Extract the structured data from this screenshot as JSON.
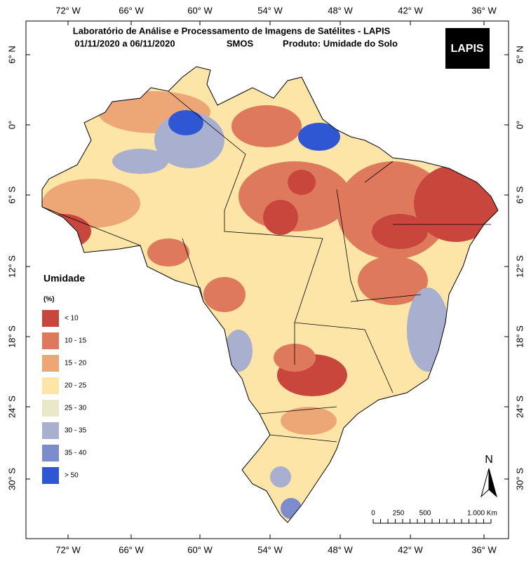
{
  "header": {
    "title": "Laboratório de Análise e Processamento de Imagens de Satélites - LAPIS",
    "period": "01/11/2020 a 06/11/2020",
    "sensor": "SMOS",
    "product": "Produto: Umidade do Solo",
    "logo": "LAPIS"
  },
  "longitude_labels": [
    "72° W",
    "66° W",
    "60° W",
    "54° W",
    "48° W",
    "42° W",
    "36° W"
  ],
  "latitude_labels": [
    "6° N",
    "0°",
    "6° S",
    "12° S",
    "18° S",
    "24° S",
    "30° S"
  ],
  "legend": {
    "title": "Umidade",
    "unit": "(%)",
    "items": [
      {
        "label": "< 10",
        "color": "#c9463d"
      },
      {
        "label": "10 - 15",
        "color": "#de7a5b"
      },
      {
        "label": "15 - 20",
        "color": "#eda777"
      },
      {
        "label": "20 - 25",
        "color": "#fde5a8"
      },
      {
        "label": "25 - 30",
        "color": "#e9e8c9"
      },
      {
        "label": "30 - 35",
        "color": "#a8afcf"
      },
      {
        "label": "35 - 40",
        "color": "#7d8ccd"
      },
      {
        "label": "> 50",
        "color": "#3057d3"
      }
    ]
  },
  "scale_bar": [
    "0",
    "250",
    "500",
    "1.000 Km"
  ],
  "north": "N"
}
